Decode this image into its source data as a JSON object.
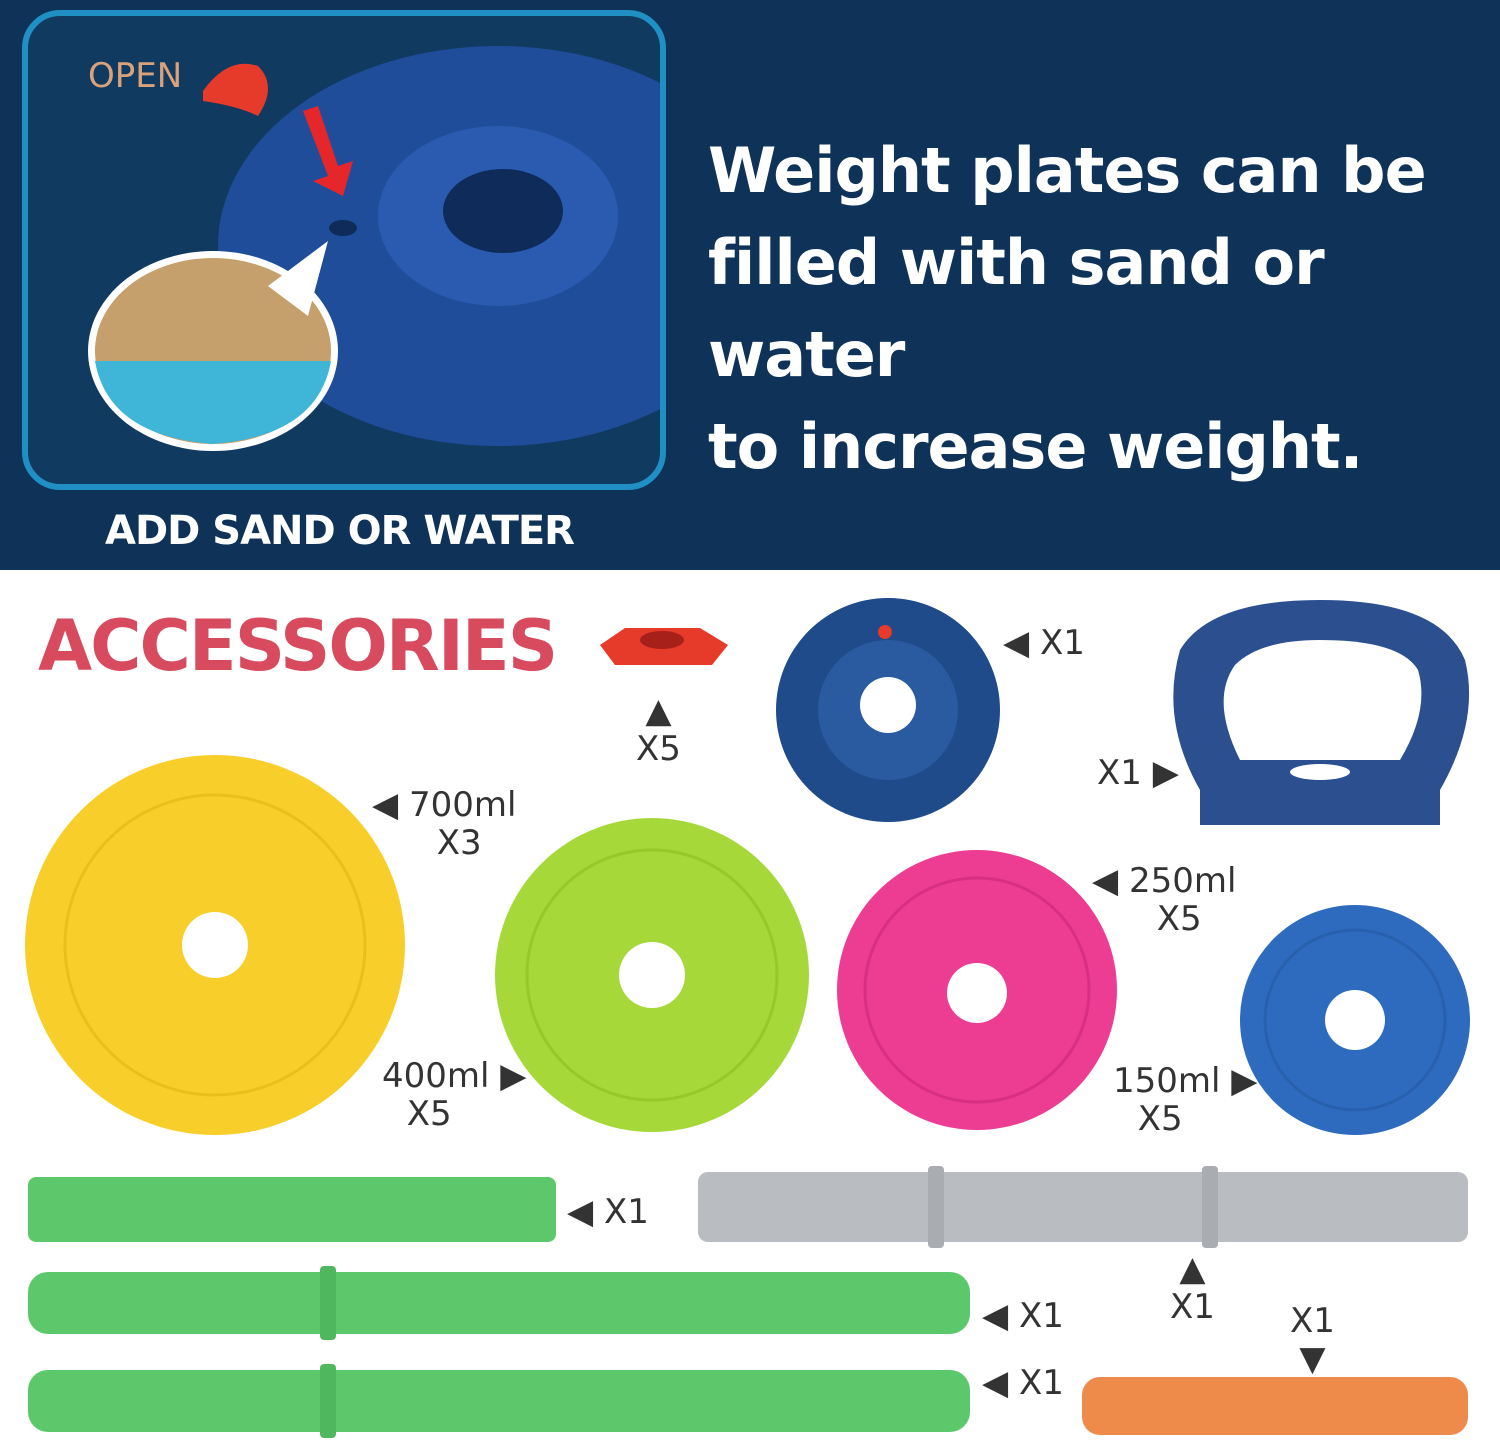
{
  "top_panel": {
    "open_label": "OPEN",
    "caption": "ADD SAND OR WATER",
    "headline": [
      "Weight plates can be",
      "filled with sand or water",
      "to increase weight."
    ]
  },
  "accessories": {
    "title": "ACCESSORIES",
    "labels": {
      "cap": {
        "arrow": "▲",
        "qty": "X5"
      },
      "navy_plate": {
        "arrow": "◀",
        "qty": "X1"
      },
      "handle": {
        "arrow": "▶",
        "qty": "X1"
      },
      "plate_700": {
        "arrow": "◀",
        "volume": "700ml",
        "qty": "X3"
      },
      "plate_400": {
        "arrow": "▶",
        "volume": "400ml",
        "qty": "X5"
      },
      "plate_250": {
        "arrow": "◀",
        "volume": "250ml",
        "qty": "X5"
      },
      "plate_150": {
        "arrow": "▶",
        "volume": "150ml",
        "qty": "X5"
      },
      "green_tube": {
        "arrow": "◀",
        "qty": "X1"
      },
      "gray_bar": {
        "arrow": "▲",
        "qty": "X1"
      },
      "green_bar_1": {
        "arrow": "◀",
        "qty": "X1"
      },
      "green_bar_2": {
        "arrow": "◀",
        "qty": "X1"
      },
      "orange_connector": {
        "arrow": "▼",
        "qty": "X1"
      }
    }
  },
  "colors": {
    "navy_bg": "#0f3358",
    "accent_title": "#d84a5e",
    "yellow": "#f8cf2a",
    "lime": "#a6d83a",
    "pink": "#ec3d93",
    "blue": "#2e6bbf",
    "navy_plate": "#1f4b8a",
    "green_bar": "#5cc86b",
    "gray_bar": "#b9bcc0",
    "orange": "#ee8a4a",
    "red_cap": "#e63a2b"
  }
}
